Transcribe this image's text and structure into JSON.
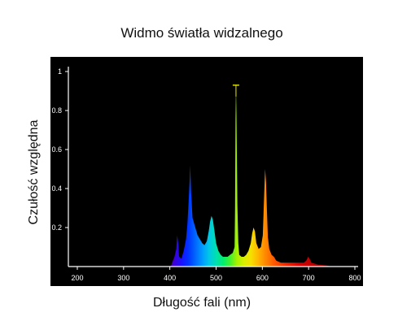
{
  "chart_data": {
    "type": "area",
    "title": "Widmo światła widzalnego",
    "xlabel": "Długość fali (nm)",
    "ylabel": "Czułość względna",
    "xlim": [
      185,
      805
    ],
    "ylim": [
      0,
      1.0
    ],
    "x_ticks": [
      200,
      300,
      400,
      500,
      600,
      700,
      800
    ],
    "x_tick_labels": [
      "200",
      "300",
      "400",
      "500",
      "600",
      "700",
      "800"
    ],
    "y_ticks": [
      0.2,
      0.4,
      0.6,
      0.8,
      1.0
    ],
    "y_tick_labels": [
      "0.2",
      "0.4",
      "0.6",
      "0.8",
      "1"
    ],
    "plot_background": "#000000",
    "axis_color": "#ffffff",
    "grid": false,
    "legend": "none",
    "series": [
      {
        "points": [
          [
            402,
            0
          ],
          [
            405,
            0.02
          ],
          [
            410,
            0.05
          ],
          [
            414,
            0.09
          ],
          [
            415,
            0.14
          ],
          [
            416,
            0.16
          ],
          [
            418,
            0.12
          ],
          [
            420,
            0.05
          ],
          [
            425,
            0.04
          ],
          [
            430,
            0.08
          ],
          [
            435,
            0.14
          ],
          [
            438,
            0.22
          ],
          [
            441,
            0.35
          ],
          [
            443,
            0.45
          ],
          [
            444,
            0.52
          ],
          [
            446,
            0.38
          ],
          [
            449,
            0.25
          ],
          [
            455,
            0.2
          ],
          [
            460,
            0.16
          ],
          [
            465,
            0.14
          ],
          [
            470,
            0.12
          ],
          [
            475,
            0.11
          ],
          [
            480,
            0.13
          ],
          [
            484,
            0.18
          ],
          [
            487,
            0.23
          ],
          [
            490,
            0.26
          ],
          [
            493,
            0.24
          ],
          [
            496,
            0.19
          ],
          [
            500,
            0.12
          ],
          [
            505,
            0.08
          ],
          [
            510,
            0.06
          ],
          [
            515,
            0.05
          ],
          [
            520,
            0.05
          ],
          [
            525,
            0.05
          ],
          [
            530,
            0.06
          ],
          [
            536,
            0.07
          ],
          [
            540,
            0.1
          ],
          [
            541,
            0.3
          ],
          [
            542,
            0.75
          ],
          [
            543,
            0.93
          ],
          [
            544,
            0.78
          ],
          [
            546,
            0.32
          ],
          [
            548,
            0.12
          ],
          [
            550,
            0.06
          ],
          [
            555,
            0.05
          ],
          [
            560,
            0.05
          ],
          [
            565,
            0.06
          ],
          [
            570,
            0.08
          ],
          [
            575,
            0.12
          ],
          [
            578,
            0.17
          ],
          [
            581,
            0.2
          ],
          [
            584,
            0.18
          ],
          [
            587,
            0.12
          ],
          [
            592,
            0.09
          ],
          [
            597,
            0.1
          ],
          [
            601,
            0.16
          ],
          [
            603,
            0.3
          ],
          [
            605,
            0.44
          ],
          [
            606,
            0.5
          ],
          [
            608,
            0.43
          ],
          [
            610,
            0.28
          ],
          [
            612,
            0.15
          ],
          [
            615,
            0.09
          ],
          [
            620,
            0.06
          ],
          [
            625,
            0.05
          ],
          [
            630,
            0.03
          ],
          [
            640,
            0.02
          ],
          [
            650,
            0.02
          ],
          [
            660,
            0.02
          ],
          [
            670,
            0.02
          ],
          [
            680,
            0.02
          ],
          [
            690,
            0.02
          ],
          [
            695,
            0.03
          ],
          [
            699,
            0.05
          ],
          [
            702,
            0.04
          ],
          [
            706,
            0.02
          ],
          [
            720,
            0.01
          ],
          [
            740,
            0.005
          ],
          [
            750,
            0
          ]
        ]
      }
    ],
    "annotations": [
      {
        "type": "error-bar-cap",
        "x": 543,
        "y": 0.93,
        "color": "#e8e800"
      }
    ]
  }
}
